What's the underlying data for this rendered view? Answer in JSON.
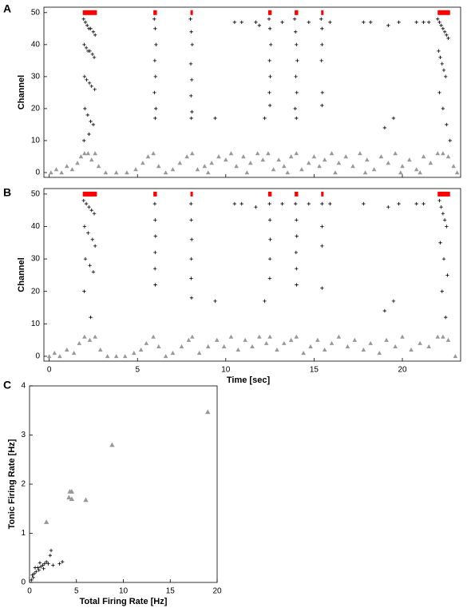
{
  "chart_data": [
    {
      "type": "raster",
      "panel_label": "A",
      "ylabel": "Channel",
      "xlim": [
        -0.3,
        23.3
      ],
      "ylim": [
        -1.5,
        51.7
      ],
      "xticks": [
        0,
        5,
        10,
        15,
        20
      ],
      "yticks": [
        0,
        10,
        20,
        30,
        40,
        50
      ],
      "show_xtick_labels": false,
      "grid": false,
      "bursts": {
        "color": "#ff0000",
        "y": 50,
        "start": [
          1.9,
          5.9,
          8.0,
          12.4,
          13.9,
          15.4,
          22.0
        ],
        "end": [
          2.7,
          6.1,
          8.1,
          12.6,
          14.1,
          15.5,
          22.7
        ]
      },
      "series": [
        {
          "marker": "plus",
          "color": "#000000",
          "x": [
            1.95,
            2.05,
            2.15,
            2.25,
            2.35,
            2.5,
            2.6,
            1.98,
            2.1,
            2.2,
            2.3,
            2.45,
            2.55,
            2.0,
            2.12,
            2.28,
            2.4,
            2.58,
            2.02,
            2.18,
            2.35,
            2.5,
            1.97,
            2.25,
            5.95,
            6.0,
            6.05,
            5.98,
            6.02,
            5.96,
            6.04,
            6.0,
            8.0,
            8.05,
            8.1,
            8.02,
            8.07,
            8.03,
            8.08,
            8.05,
            12.45,
            12.5,
            12.55,
            12.48,
            12.52,
            12.47,
            12.5,
            13.9,
            13.95,
            14.0,
            14.05,
            13.97,
            14.02,
            13.93,
            14.0,
            15.4,
            15.45,
            15.45,
            15.42,
            15.47,
            15.45,
            22.0,
            22.1,
            22.2,
            22.3,
            22.4,
            22.5,
            22.6,
            22.05,
            22.15,
            22.25,
            22.35,
            22.45,
            22.1,
            22.3,
            22.5,
            22.7,
            9.4,
            12.2,
            19.0,
            19.5,
            10.5,
            10.9,
            11.7,
            11.9,
            13.2,
            14.7,
            15.9,
            17.8,
            18.2,
            19.2,
            19.8,
            20.8,
            21.2,
            21.5
          ],
          "y": [
            48,
            47,
            46,
            45,
            45,
            44,
            43,
            40,
            39,
            38,
            38,
            37,
            36,
            30,
            29,
            28,
            27,
            26,
            20,
            18,
            16,
            15,
            10,
            12,
            48,
            45,
            40,
            35,
            30,
            25,
            20,
            17,
            48,
            44,
            40,
            34,
            29,
            24,
            19,
            17,
            48,
            45,
            40,
            35,
            30,
            25,
            21,
            48,
            44,
            40,
            35,
            30,
            25,
            20,
            17,
            48,
            45,
            40,
            35,
            25,
            21,
            48,
            47,
            46,
            45,
            44,
            43,
            42,
            38,
            36,
            34,
            32,
            30,
            25,
            20,
            15,
            10,
            17,
            17,
            14,
            17,
            47,
            47,
            47,
            46,
            47,
            47,
            47,
            47,
            47,
            46,
            47,
            47,
            47,
            47
          ]
        },
        {
          "marker": "triangle",
          "color": "#999999",
          "x": [
            0.1,
            0.4,
            0.7,
            1.0,
            1.3,
            1.6,
            1.8,
            2.0,
            2.2,
            2.4,
            2.6,
            2.8,
            3.2,
            3.8,
            4.4,
            4.9,
            5.3,
            5.6,
            5.9,
            6.2,
            6.6,
            7.0,
            7.4,
            7.8,
            8.1,
            8.4,
            8.8,
            9.2,
            9.6,
            10.0,
            10.3,
            10.6,
            11.0,
            11.4,
            11.8,
            12.1,
            12.4,
            12.7,
            13.0,
            13.3,
            13.7,
            14.0,
            14.3,
            14.7,
            15.0,
            15.3,
            15.6,
            16.0,
            16.4,
            16.8,
            17.2,
            17.6,
            18.0,
            18.4,
            18.8,
            19.2,
            19.6,
            20.0,
            20.4,
            20.8,
            21.2,
            21.6,
            22.0,
            22.3,
            22.6,
            22.9,
            23.1,
            9.0,
            11.2,
            13.5,
            16.2,
            17.9,
            19.9,
            21.0
          ],
          "y": [
            0,
            1,
            0,
            2,
            1,
            3,
            5,
            6,
            6,
            4,
            6,
            2,
            0,
            0,
            0,
            1,
            3,
            5,
            6,
            2,
            0,
            1,
            3,
            5,
            6,
            1,
            2,
            3,
            5,
            4,
            6,
            2,
            5,
            3,
            6,
            4,
            6,
            1,
            4,
            2,
            5,
            6,
            1,
            3,
            5,
            2,
            4,
            6,
            3,
            5,
            2,
            6,
            4,
            1,
            5,
            3,
            6,
            2,
            4,
            1,
            5,
            3,
            6,
            6,
            5,
            2,
            0,
            0,
            0,
            0,
            0,
            0,
            0,
            0
          ]
        }
      ]
    },
    {
      "type": "raster",
      "panel_label": "B",
      "ylabel": "Channel",
      "xlabel": "Time [sec]",
      "xlim": [
        -0.3,
        23.3
      ],
      "ylim": [
        -1.5,
        51.7
      ],
      "xticks": [
        0,
        5,
        10,
        15,
        20
      ],
      "yticks": [
        0,
        10,
        20,
        30,
        40,
        50
      ],
      "show_xtick_labels": true,
      "grid": false,
      "bursts": {
        "color": "#ff0000",
        "y": 50,
        "start": [
          1.9,
          5.9,
          8.0,
          12.4,
          13.9,
          15.4,
          22.0
        ],
        "end": [
          2.7,
          6.1,
          8.1,
          12.6,
          14.1,
          15.5,
          22.7
        ]
      },
      "series": [
        {
          "marker": "plus",
          "color": "#000000",
          "x": [
            1.95,
            2.1,
            2.25,
            2.4,
            2.55,
            2.0,
            2.2,
            2.45,
            2.6,
            2.05,
            2.3,
            2.5,
            1.98,
            2.35,
            5.98,
            6.0,
            6.02,
            6.0,
            5.99,
            6.01,
            8.03,
            8.05,
            8.07,
            8.05,
            8.04,
            8.06,
            12.48,
            12.5,
            12.52,
            12.5,
            12.49,
            13.95,
            14.0,
            14.02,
            13.98,
            14.0,
            14.01,
            15.45,
            15.45,
            15.45,
            15.45,
            22.1,
            22.2,
            22.3,
            22.4,
            22.5,
            22.15,
            22.35,
            22.55,
            22.25,
            22.45,
            9.4,
            12.2,
            19.0,
            19.5,
            10.5,
            10.9,
            11.7,
            13.2,
            14.7,
            15.9,
            17.8,
            19.2,
            19.8,
            20.8,
            21.2
          ],
          "y": [
            48,
            47,
            46,
            45,
            44,
            40,
            38,
            36,
            34,
            30,
            28,
            26,
            20,
            12,
            47,
            42,
            37,
            32,
            27,
            22,
            47,
            42,
            36,
            30,
            24,
            18,
            47,
            42,
            36,
            30,
            24,
            47,
            42,
            37,
            32,
            27,
            22,
            47,
            40,
            34,
            21,
            48,
            46,
            44,
            42,
            40,
            35,
            30,
            25,
            20,
            12,
            17,
            17,
            14,
            17,
            47,
            47,
            46,
            47,
            47,
            47,
            47,
            46,
            47,
            47,
            47
          ]
        },
        {
          "marker": "triangle",
          "color": "#999999",
          "x": [
            0.0,
            0.3,
            0.6,
            1.0,
            1.4,
            1.7,
            2.0,
            2.3,
            2.6,
            2.9,
            3.3,
            3.8,
            4.3,
            4.8,
            5.2,
            5.5,
            5.9,
            6.2,
            6.6,
            7.0,
            7.5,
            7.9,
            8.1,
            8.5,
            9.0,
            9.5,
            9.9,
            10.3,
            10.7,
            11.1,
            11.5,
            11.9,
            12.3,
            12.5,
            12.9,
            13.3,
            13.7,
            14.0,
            14.4,
            14.8,
            15.2,
            15.6,
            16.0,
            16.4,
            16.9,
            17.3,
            17.8,
            18.2,
            18.7,
            19.1,
            19.6,
            20.0,
            20.5,
            21.0,
            21.5,
            22.0,
            22.3,
            22.6,
            23.0
          ],
          "y": [
            0,
            1,
            0,
            2,
            1,
            4,
            6,
            5,
            6,
            2,
            0,
            0,
            0,
            1,
            2,
            4,
            6,
            3,
            0,
            1,
            3,
            5,
            6,
            1,
            3,
            5,
            3,
            6,
            2,
            5,
            3,
            6,
            4,
            6,
            2,
            4,
            5,
            6,
            1,
            3,
            5,
            2,
            4,
            6,
            3,
            5,
            2,
            4,
            1,
            5,
            3,
            6,
            2,
            4,
            3,
            6,
            6,
            5,
            0
          ]
        }
      ]
    },
    {
      "type": "scatter",
      "panel_label": "C",
      "xlabel": "Total Firing Rate [Hz]",
      "ylabel": "Tonic Firing Rate [Hz]",
      "xlim": [
        0,
        20
      ],
      "ylim": [
        0,
        4
      ],
      "xticks": [
        0,
        5,
        10,
        15,
        20
      ],
      "yticks": [
        0,
        1,
        2,
        3,
        4
      ],
      "show_xtick_labels": true,
      "grid": false,
      "series": [
        {
          "marker": "triangle",
          "color": "#999999",
          "x": [
            19.0,
            8.8,
            4.3,
            4.5,
            4.2,
            4.5,
            6.0,
            1.8
          ],
          "y": [
            3.47,
            2.8,
            1.85,
            1.85,
            1.73,
            1.7,
            1.68,
            1.23
          ]
        },
        {
          "marker": "plus",
          "color": "#000000",
          "x": [
            0.2,
            0.4,
            0.5,
            0.7,
            0.9,
            1.0,
            1.2,
            1.4,
            1.6,
            1.8,
            2.0,
            2.2,
            2.3,
            2.5,
            0.6,
            1.1,
            3.2,
            3.5,
            1.5,
            0.3
          ],
          "y": [
            0.05,
            0.1,
            0.18,
            0.22,
            0.3,
            0.25,
            0.32,
            0.35,
            0.38,
            0.42,
            0.38,
            0.55,
            0.65,
            0.35,
            0.3,
            0.4,
            0.38,
            0.42,
            0.28,
            0.15
          ]
        }
      ]
    }
  ]
}
